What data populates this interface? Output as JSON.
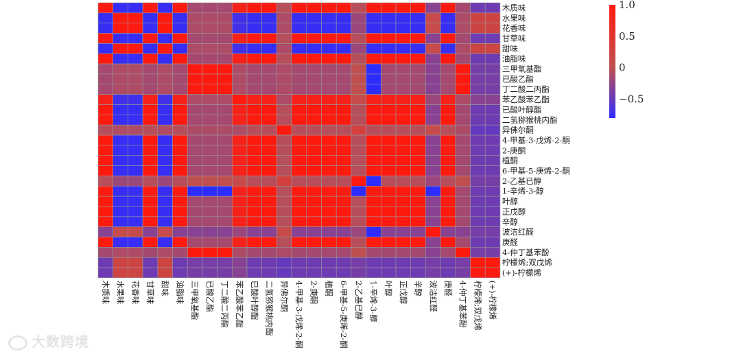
{
  "chart_data": {
    "type": "heatmap",
    "labels": [
      "木质味",
      "水果味",
      "花香味",
      "甘草味",
      "甜味",
      "油脂味",
      "三甲氧基酯",
      "已酸乙酯",
      "丁二酸二丙酯",
      "苯乙酸苯乙酯",
      "已酸叶醇酯",
      "二氢猕猴桃内酯",
      "异佛尔酮",
      "4-甲基-3-戊烯-2-酮",
      "2-庚酮",
      "植酮",
      "6-甲基-5-庚烯-2-酮",
      "2-乙基已醇",
      "1-辛烯-3-醇",
      "叶醇",
      "正戊醇",
      "辛醇",
      "波洁红醛",
      "庚醛",
      "4-仲丁基苯酚",
      "柠檬烯;双戊烯",
      "(+)-柠檬烯"
    ],
    "colorbar": {
      "ticks": [
        1.0,
        0.5,
        0,
        -0.5
      ],
      "tick_labels": [
        "1.0",
        "0.5",
        "0",
        "−0.5"
      ],
      "range": [
        -0.8,
        1.0
      ]
    },
    "colors": {
      "high": "#ff1a10",
      "mid": "#c05050",
      "low": "#2e2bff",
      "grid": "#9a9a9a"
    },
    "groups": [
      0,
      1,
      1,
      0,
      1,
      0,
      2,
      2,
      2,
      3,
      0,
      0,
      4,
      0,
      0,
      0,
      0,
      5,
      0,
      0,
      0,
      0,
      6,
      0,
      2,
      7,
      7
    ],
    "group_matrix": [
      [
        1.0,
        -0.75,
        -0.15,
        0.85,
        -0.05,
        -0.05,
        -0.3,
        -0.45
      ],
      [
        -0.75,
        1.0,
        -0.1,
        -0.7,
        -0.1,
        -0.2,
        0.1,
        0.2
      ],
      [
        -0.15,
        -0.1,
        1.0,
        -0.1,
        -0.1,
        0.0,
        -0.3,
        -0.4
      ],
      [
        0.85,
        -0.7,
        -0.1,
        1.0,
        -0.1,
        0.1,
        -0.2,
        -0.3
      ],
      [
        -0.05,
        -0.1,
        -0.1,
        -0.1,
        1.0,
        0.3,
        0.1,
        -0.5
      ],
      [
        -0.05,
        -0.2,
        0.0,
        0.1,
        0.3,
        1.0,
        -0.2,
        -0.4
      ],
      [
        -0.3,
        0.1,
        -0.3,
        -0.2,
        0.1,
        -0.2,
        1.0,
        -0.4
      ],
      [
        -0.45,
        0.2,
        -0.4,
        -0.3,
        -0.5,
        -0.4,
        -0.4,
        1.0
      ]
    ],
    "overrides": [
      {
        "row": "1-辛烯-3-醇",
        "col": "三甲氧基酯",
        "value": -0.8
      },
      {
        "row": "1-辛烯-3-醇",
        "col": "已酸乙酯",
        "value": -0.8
      },
      {
        "row": "1-辛烯-3-醇",
        "col": "丁二酸二丙酯",
        "value": -0.8
      },
      {
        "row": "1-辛烯-3-醇",
        "col": "波洁红醛",
        "value": -0.8
      },
      {
        "row": "1-辛烯-3-醇",
        "col": "2-乙基已醇",
        "value": -0.8
      },
      {
        "row": "三甲氧基酯",
        "col": "1-辛烯-3-醇",
        "value": -0.8
      },
      {
        "row": "已酸乙酯",
        "col": "1-辛烯-3-醇",
        "value": -0.8
      },
      {
        "row": "丁二酸二丙酯",
        "col": "1-辛烯-3-醇",
        "value": -0.8
      },
      {
        "row": "波洁红醛",
        "col": "1-辛烯-3-醇",
        "value": -0.8
      },
      {
        "row": "2-乙基已醇",
        "col": "1-辛烯-3-醇",
        "value": -0.8
      }
    ]
  },
  "watermark": "大数跨境"
}
